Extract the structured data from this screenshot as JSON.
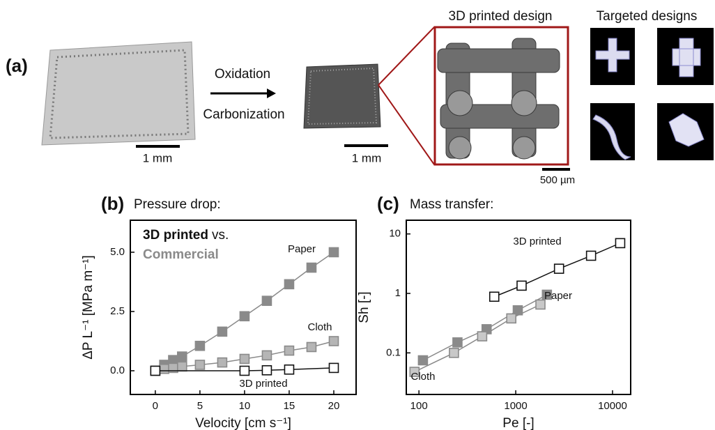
{
  "figure": {
    "panel_a": "(a)",
    "step_1": "Oxidation",
    "step_2": "Carbonization",
    "scale_1": "1 mm",
    "scale_2": "1 mm",
    "scale_3": "500 µm",
    "zoom_title": "3D printed design",
    "designs_title": "Targeted designs"
  },
  "chart_data": [
    {
      "type": "line",
      "panel": "(b)",
      "title": "Pressure drop:",
      "x_label": "Velocity [cm s⁻¹]",
      "y_label": "ΔP L⁻¹ [MPa m⁻¹]",
      "legend_title": [
        "3D printed",
        "vs.",
        "Commercial"
      ],
      "xlim": [
        -2.8,
        22.5
      ],
      "xticks": [
        0,
        5,
        10,
        15,
        20
      ],
      "ylim": [
        -1,
        6.35
      ],
      "yticks": [
        {
          "value": 0,
          "label": "0.0"
        },
        {
          "value": 2.5,
          "label": "2.5"
        },
        {
          "value": 5,
          "label": "5.0"
        }
      ],
      "log_x": false,
      "log_y": false,
      "series": [
        {
          "name": "Paper",
          "color": "#8a8a8a",
          "marker_fill": "#8a8a8a",
          "x": [
            0,
            1,
            2,
            3,
            5,
            7.5,
            10,
            12.5,
            15,
            17.5,
            20
          ],
          "values": [
            0,
            0.25,
            0.45,
            0.6,
            1.05,
            1.65,
            2.3,
            2.95,
            3.65,
            4.35,
            5.0
          ]
        },
        {
          "name": "Cloth",
          "color": "#8a8a8a",
          "marker_fill": "#b5b5b5",
          "x": [
            0,
            1,
            2,
            3,
            5,
            7.5,
            10,
            12.5,
            15,
            17.5,
            20
          ],
          "values": [
            0,
            0.08,
            0.12,
            0.18,
            0.25,
            0.35,
            0.5,
            0.65,
            0.85,
            1.0,
            1.25
          ]
        },
        {
          "name": "3D printed",
          "color": "#111111",
          "marker_fill": "#ffffff",
          "x": [
            0,
            10,
            12.5,
            15,
            20
          ],
          "values": [
            0,
            0,
            0.02,
            0.05,
            0.12
          ]
        }
      ]
    },
    {
      "type": "line",
      "panel": "(c)",
      "title": "Mass transfer:",
      "x_label": "Pe [-]",
      "y_label": "Sh [-]",
      "xlim": [
        74,
        15400
      ],
      "xticks": [
        100,
        1000,
        10000
      ],
      "ylim": [
        0.02,
        17
      ],
      "yticks": [
        0.1,
        1,
        10
      ],
      "log_x": true,
      "log_y": true,
      "series": [
        {
          "name": "3D printed",
          "color": "#111111",
          "marker_fill": "#ffffff",
          "x": [
            600,
            1150,
            2800,
            6000,
            12000
          ],
          "values": [
            0.88,
            1.35,
            2.6,
            4.3,
            7.0
          ]
        },
        {
          "name": "Paper",
          "color": "#8a8a8a",
          "marker_fill": "#8a8a8a",
          "x": [
            110,
            250,
            500,
            1050,
            2100
          ],
          "values": [
            0.075,
            0.15,
            0.25,
            0.52,
            0.95
          ]
        },
        {
          "name": "Cloth",
          "color": "#8a8a8a",
          "marker_fill": "#c8c8c8",
          "x": [
            90,
            230,
            450,
            900,
            1800
          ],
          "values": [
            0.048,
            0.1,
            0.19,
            0.38,
            0.65
          ]
        }
      ]
    }
  ]
}
